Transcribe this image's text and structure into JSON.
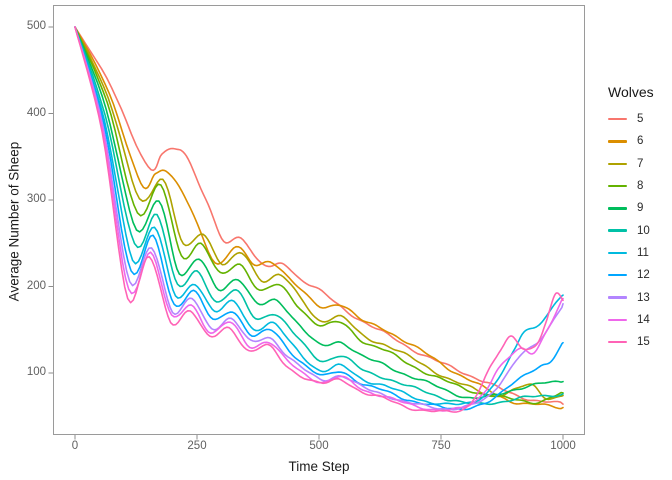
{
  "chart_data": {
    "type": "line",
    "title": "",
    "xlabel": "Time Step",
    "ylabel": "Average Number of Sheep",
    "legend_title": "Wolves",
    "legend_position": "right",
    "grid": false,
    "panel_border_color": "#9a9a9a",
    "background_color": "#ffffff",
    "xlim": [
      -45,
      1045
    ],
    "ylim": [
      25,
      510
    ],
    "xticks": [
      "0",
      "250",
      "500",
      "750",
      "1000"
    ],
    "yticks": [
      "500",
      "400",
      "300",
      "200",
      "100"
    ],
    "series": [
      {
        "name": "5",
        "color": "#F8766D",
        "points": [
          [
            0,
            500
          ],
          [
            75,
            430
          ],
          [
            150,
            337
          ],
          [
            178,
            352
          ],
          [
            205,
            360
          ],
          [
            228,
            352
          ],
          [
            268,
            300
          ],
          [
            305,
            252
          ],
          [
            340,
            258
          ],
          [
            372,
            232
          ],
          [
            400,
            222
          ],
          [
            428,
            226
          ],
          [
            460,
            210
          ],
          [
            500,
            196
          ],
          [
            545,
            176
          ],
          [
            590,
            160
          ],
          [
            640,
            144
          ],
          [
            690,
            128
          ],
          [
            740,
            114
          ],
          [
            790,
            102
          ],
          [
            840,
            90
          ],
          [
            890,
            77
          ],
          [
            940,
            69
          ],
          [
            1000,
            64
          ]
        ]
      },
      {
        "name": "6",
        "color": "#DB8E00",
        "points": [
          [
            0,
            500
          ],
          [
            70,
            424
          ],
          [
            135,
            318
          ],
          [
            165,
            330
          ],
          [
            190,
            334
          ],
          [
            230,
            298
          ],
          [
            287,
            228
          ],
          [
            330,
            247
          ],
          [
            368,
            224
          ],
          [
            405,
            228
          ],
          [
            450,
            204
          ],
          [
            502,
            176
          ],
          [
            545,
            180
          ],
          [
            590,
            160
          ],
          [
            635,
            150
          ],
          [
            680,
            136
          ],
          [
            725,
            120
          ],
          [
            770,
            104
          ],
          [
            815,
            90
          ],
          [
            860,
            76
          ],
          [
            905,
            66
          ],
          [
            950,
            63
          ],
          [
            1000,
            60
          ]
        ]
      },
      {
        "name": "7",
        "color": "#AEA200",
        "points": [
          [
            0,
            500
          ],
          [
            68,
            418
          ],
          [
            132,
            302
          ],
          [
            180,
            324
          ],
          [
            222,
            248
          ],
          [
            262,
            262
          ],
          [
            302,
            226
          ],
          [
            342,
            238
          ],
          [
            382,
            208
          ],
          [
            422,
            213
          ],
          [
            465,
            184
          ],
          [
            502,
            161
          ],
          [
            545,
            165
          ],
          [
            590,
            143
          ],
          [
            635,
            133
          ],
          [
            680,
            120
          ],
          [
            725,
            106
          ],
          [
            770,
            92
          ],
          [
            815,
            82
          ],
          [
            860,
            74
          ],
          [
            900,
            80
          ],
          [
            935,
            86
          ],
          [
            965,
            72
          ],
          [
            1000,
            74
          ]
        ]
      },
      {
        "name": "8",
        "color": "#64B200",
        "points": [
          [
            0,
            500
          ],
          [
            66,
            412
          ],
          [
            128,
            286
          ],
          [
            176,
            316
          ],
          [
            218,
            236
          ],
          [
            258,
            250
          ],
          [
            298,
            214
          ],
          [
            338,
            226
          ],
          [
            378,
            196
          ],
          [
            418,
            201
          ],
          [
            460,
            176
          ],
          [
            502,
            155
          ],
          [
            545,
            158
          ],
          [
            590,
            137
          ],
          [
            635,
            126
          ],
          [
            680,
            112
          ],
          [
            725,
            99
          ],
          [
            770,
            88
          ],
          [
            815,
            79
          ],
          [
            860,
            73
          ],
          [
            905,
            69
          ],
          [
            950,
            67
          ],
          [
            1000,
            77
          ]
        ]
      },
      {
        "name": "9",
        "color": "#00BD5C",
        "points": [
          [
            0,
            500
          ],
          [
            64,
            405
          ],
          [
            126,
            265
          ],
          [
            172,
            299
          ],
          [
            214,
            216
          ],
          [
            254,
            231
          ],
          [
            294,
            197
          ],
          [
            334,
            209
          ],
          [
            374,
            179
          ],
          [
            414,
            184
          ],
          [
            456,
            158
          ],
          [
            502,
            132
          ],
          [
            545,
            136
          ],
          [
            590,
            119
          ],
          [
            635,
            109
          ],
          [
            680,
            98
          ],
          [
            725,
            88
          ],
          [
            770,
            78
          ],
          [
            815,
            71
          ],
          [
            860,
            74
          ],
          [
            905,
            82
          ],
          [
            950,
            87
          ],
          [
            1000,
            90
          ]
        ]
      },
      {
        "name": "10",
        "color": "#00C1A7",
        "points": [
          [
            0,
            500
          ],
          [
            62,
            398
          ],
          [
            122,
            248
          ],
          [
            168,
            284
          ],
          [
            210,
            201
          ],
          [
            250,
            217
          ],
          [
            290,
            183
          ],
          [
            330,
            195
          ],
          [
            370,
            163
          ],
          [
            410,
            169
          ],
          [
            452,
            143
          ],
          [
            502,
            115
          ],
          [
            545,
            120
          ],
          [
            590,
            103
          ],
          [
            635,
            95
          ],
          [
            680,
            85
          ],
          [
            725,
            77
          ],
          [
            770,
            69
          ],
          [
            815,
            64
          ],
          [
            860,
            66
          ],
          [
            905,
            70
          ],
          [
            950,
            73
          ],
          [
            1000,
            76
          ]
        ]
      },
      {
        "name": "11",
        "color": "#00BADE",
        "points": [
          [
            0,
            500
          ],
          [
            60,
            392
          ],
          [
            118,
            232
          ],
          [
            163,
            269
          ],
          [
            206,
            189
          ],
          [
            246,
            204
          ],
          [
            286,
            171
          ],
          [
            326,
            182
          ],
          [
            366,
            151
          ],
          [
            406,
            157
          ],
          [
            448,
            131
          ],
          [
            502,
            103
          ],
          [
            545,
            108
          ],
          [
            590,
            93
          ],
          [
            635,
            85
          ],
          [
            680,
            75
          ],
          [
            725,
            67
          ],
          [
            770,
            63
          ],
          [
            810,
            66
          ],
          [
            845,
            78
          ],
          [
            875,
            100
          ],
          [
            900,
            125
          ],
          [
            920,
            148
          ],
          [
            945,
            154
          ],
          [
            970,
            170
          ],
          [
            1000,
            190
          ]
        ]
      },
      {
        "name": "12",
        "color": "#00A6FF",
        "points": [
          [
            0,
            500
          ],
          [
            59,
            388
          ],
          [
            115,
            218
          ],
          [
            160,
            257
          ],
          [
            203,
            180
          ],
          [
            243,
            195
          ],
          [
            283,
            161
          ],
          [
            323,
            172
          ],
          [
            363,
            143
          ],
          [
            403,
            149
          ],
          [
            445,
            123
          ],
          [
            502,
            97
          ],
          [
            545,
            102
          ],
          [
            590,
            87
          ],
          [
            635,
            79
          ],
          [
            680,
            70
          ],
          [
            725,
            63
          ],
          [
            770,
            59
          ],
          [
            815,
            61
          ],
          [
            855,
            68
          ],
          [
            895,
            88
          ],
          [
            925,
            100
          ],
          [
            955,
            107
          ],
          [
            975,
            112
          ],
          [
            1000,
            135
          ]
        ]
      },
      {
        "name": "13",
        "color": "#B385FF",
        "points": [
          [
            0,
            500
          ],
          [
            58,
            384
          ],
          [
            112,
            205
          ],
          [
            157,
            246
          ],
          [
            200,
            171
          ],
          [
            240,
            185
          ],
          [
            280,
            152
          ],
          [
            320,
            163
          ],
          [
            360,
            136
          ],
          [
            400,
            141
          ],
          [
            442,
            116
          ],
          [
            502,
            93
          ],
          [
            545,
            97
          ],
          [
            590,
            83
          ],
          [
            635,
            75
          ],
          [
            680,
            66
          ],
          [
            725,
            61
          ],
          [
            770,
            59
          ],
          [
            815,
            63
          ],
          [
            850,
            74
          ],
          [
            885,
            100
          ],
          [
            915,
            122
          ],
          [
            945,
            132
          ],
          [
            970,
            152
          ],
          [
            1000,
            180
          ]
        ]
      },
      {
        "name": "14",
        "color": "#EF67EB",
        "points": [
          [
            0,
            500
          ],
          [
            57,
            381
          ],
          [
            110,
            196
          ],
          [
            155,
            240
          ],
          [
            198,
            165
          ],
          [
            238,
            179
          ],
          [
            278,
            147
          ],
          [
            318,
            158
          ],
          [
            358,
            131
          ],
          [
            398,
            136
          ],
          [
            440,
            111
          ],
          [
            502,
            90
          ],
          [
            545,
            95
          ],
          [
            590,
            81
          ],
          [
            635,
            73
          ],
          [
            680,
            64
          ],
          [
            725,
            59
          ],
          [
            770,
            57
          ],
          [
            810,
            63
          ],
          [
            840,
            80
          ],
          [
            865,
            103
          ],
          [
            890,
            118
          ],
          [
            915,
            127
          ],
          [
            940,
            124
          ],
          [
            965,
            148
          ],
          [
            1000,
            186
          ]
        ]
      },
      {
        "name": "15",
        "color": "#FF63B6",
        "points": [
          [
            0,
            500
          ],
          [
            56,
            377
          ],
          [
            108,
            188
          ],
          [
            152,
            234
          ],
          [
            196,
            159
          ],
          [
            236,
            173
          ],
          [
            276,
            141
          ],
          [
            316,
            152
          ],
          [
            356,
            126
          ],
          [
            396,
            131
          ],
          [
            438,
            106
          ],
          [
            502,
            88
          ],
          [
            545,
            92
          ],
          [
            590,
            78
          ],
          [
            635,
            70
          ],
          [
            680,
            61
          ],
          [
            725,
            56
          ],
          [
            770,
            55
          ],
          [
            800,
            60
          ],
          [
            825,
            78
          ],
          [
            850,
            105
          ],
          [
            875,
            128
          ],
          [
            895,
            142
          ],
          [
            920,
            129
          ],
          [
            945,
            133
          ],
          [
            965,
            158
          ],
          [
            985,
            190
          ],
          [
            1000,
            184
          ]
        ]
      }
    ]
  }
}
